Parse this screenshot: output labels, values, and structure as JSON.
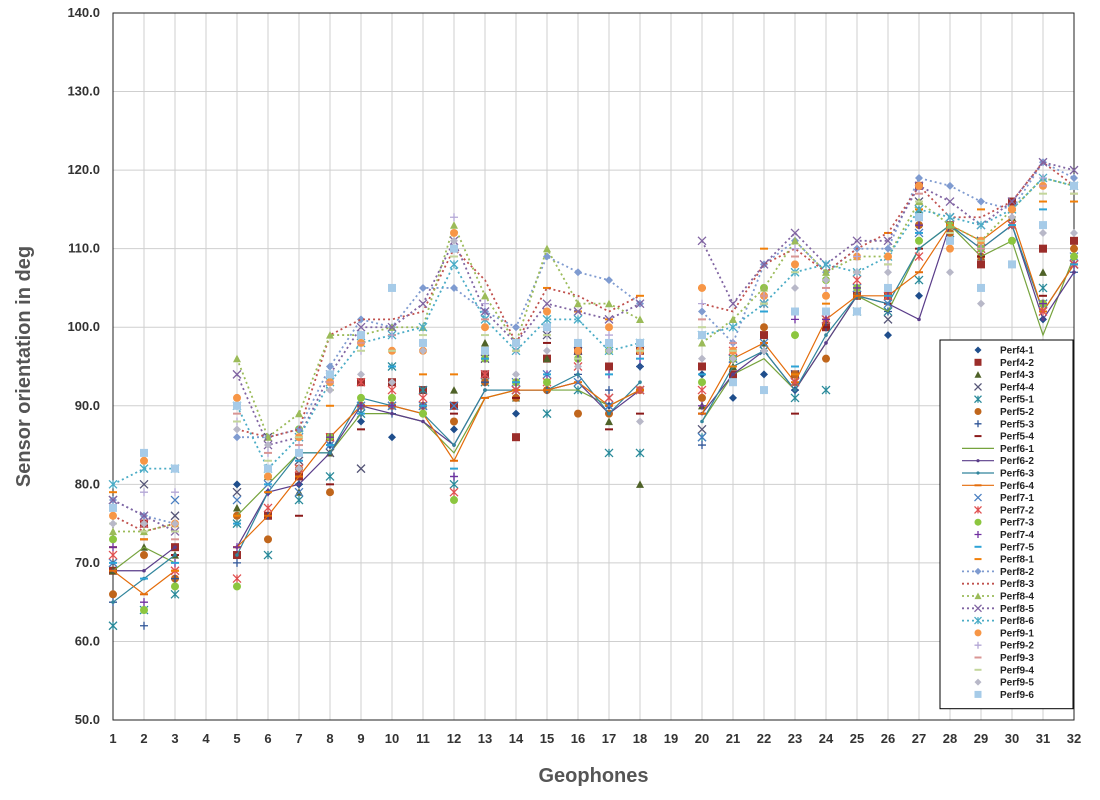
{
  "chart_data": {
    "type": "line",
    "title": "",
    "xlabel": "Geophones",
    "ylabel": "Sensor orientation in deg",
    "ylim": [
      50,
      140
    ],
    "yticks": [
      50,
      60,
      70,
      80,
      90,
      100,
      110,
      120,
      130,
      140
    ],
    "ytick_labels": [
      "50.0",
      "60.0",
      "70.0",
      "80.0",
      "90.0",
      "100.0",
      "110.0",
      "120.0",
      "130.0",
      "140.0"
    ],
    "x": [
      1,
      2,
      3,
      4,
      5,
      6,
      7,
      8,
      9,
      10,
      11,
      12,
      13,
      14,
      15,
      16,
      17,
      18,
      19,
      20,
      21,
      22,
      23,
      24,
      25,
      26,
      27,
      28,
      29,
      30,
      31,
      32
    ],
    "xtick_labels": [
      "1",
      "2",
      "3",
      "4",
      "5",
      "6",
      "7",
      "8",
      "9",
      "10",
      "11",
      "12",
      "13",
      "14",
      "15",
      "16",
      "17",
      "18",
      "19",
      "20",
      "21",
      "22",
      "23",
      "24",
      "25",
      "26",
      "27",
      "28",
      "29",
      "30",
      "31",
      "32"
    ],
    "grid": true,
    "legend_position": "bottom-right",
    "series": [
      {
        "name": "Perf4-1",
        "color": "#1f4e8c",
        "marker": "diamond",
        "line": "none",
        "values": [
          69,
          71,
          72,
          null,
          80,
          79,
          80,
          85,
          88,
          86,
          89,
          87,
          94,
          89,
          96,
          97,
          90,
          95,
          null,
          94,
          91,
          94,
          92,
          100,
          104,
          99,
          104,
          110,
          110,
          113,
          101,
          110
        ]
      },
      {
        "name": "Perf4-2",
        "color": "#9b2d2a",
        "marker": "square",
        "line": "none",
        "values": [
          69,
          75,
          72,
          null,
          71,
          76,
          81,
          86,
          93,
          93,
          92,
          90,
          94,
          86,
          96,
          97,
          95,
          97,
          null,
          95,
          94,
          99,
          94,
          100,
          104,
          104,
          118,
          113,
          108,
          116,
          110,
          111
        ]
      },
      {
        "name": "Perf4-3",
        "color": "#4f6228",
        "marker": "triangle",
        "line": "none",
        "values": [
          69,
          72,
          71,
          null,
          77,
          81,
          79,
          84,
          90,
          90,
          90,
          92,
          98,
          91,
          96,
          97,
          88,
          80,
          null,
          90,
          95,
          98,
          93,
          101,
          104,
          104,
          115,
          113,
          109,
          114,
          107,
          109
        ]
      },
      {
        "name": "Perf4-4",
        "color": "#555577",
        "marker": "x",
        "line": "none",
        "values": [
          78,
          80,
          76,
          null,
          79,
          86,
          83,
          84,
          82,
          90,
          90,
          90,
          96,
          92,
          99,
          97,
          91,
          92,
          null,
          87,
          96,
          97,
          94,
          101,
          105,
          101,
          116,
          114,
          111,
          113,
          103,
          108
        ]
      },
      {
        "name": "Perf5-1",
        "color": "#2a8a9a",
        "marker": "asterisk",
        "line": "none",
        "values": [
          62,
          64,
          66,
          null,
          75,
          71,
          78,
          81,
          89,
          95,
          92,
          80,
          93,
          92,
          89,
          92,
          84,
          84,
          null,
          86,
          96,
          97,
          91,
          92,
          102,
          102,
          106,
          112,
          110,
          113,
          105,
          108
        ]
      },
      {
        "name": "Perf5-2",
        "color": "#c0661c",
        "marker": "circle",
        "line": "none",
        "values": [
          66,
          71,
          68,
          null,
          76,
          73,
          82,
          79,
          90,
          90,
          90,
          88,
          93,
          91,
          92,
          89,
          89,
          92,
          null,
          91,
          96,
          100,
          94,
          96,
          104,
          104,
          113,
          112,
          109,
          115,
          103,
          110
        ]
      },
      {
        "name": "Perf5-3",
        "color": "#2f5597",
        "marker": "plus",
        "line": "none",
        "values": [
          65,
          62,
          68,
          null,
          70,
          76,
          80,
          85,
          89,
          89,
          89,
          81,
          93,
          92,
          92,
          94,
          92,
          95,
          null,
          85,
          98,
          97,
          92,
          100,
          104,
          102,
          113,
          113,
          109,
          114,
          103,
          107
        ]
      },
      {
        "name": "Perf5-4",
        "color": "#8b1a1a",
        "marker": "dash",
        "line": "none",
        "values": [
          72,
          73,
          71,
          null,
          72,
          76,
          76,
          80,
          87,
          90,
          90,
          89,
          96,
          91,
          98,
          96,
          87,
          89,
          null,
          89,
          95,
          103,
          89,
          100,
          104,
          103,
          110,
          113,
          109,
          114,
          104,
          108
        ]
      },
      {
        "name": "Perf6-1",
        "color": "#76a33d",
        "marker": "none",
        "line": "solid",
        "values": [
          69,
          72,
          70,
          null,
          76,
          80,
          84,
          84,
          89,
          89,
          88,
          84,
          91,
          92,
          92,
          92,
          90,
          92,
          null,
          88,
          94,
          96,
          92,
          98,
          104,
          102,
          110,
          113,
          109,
          111,
          99,
          109
        ]
      },
      {
        "name": "Perf6-2",
        "color": "#5a3d8a",
        "marker": "dot",
        "line": "solid",
        "values": [
          69,
          69,
          72,
          null,
          72,
          79,
          80,
          84,
          90,
          89,
          88,
          85,
          92,
          92,
          92,
          93,
          89,
          92,
          null,
          89,
          94,
          97,
          92,
          98,
          104,
          103,
          101,
          113,
          110,
          113,
          101,
          107
        ]
      },
      {
        "name": "Perf6-3",
        "color": "#31859c",
        "marker": "dot",
        "line": "solid",
        "values": [
          65,
          68,
          71,
          null,
          71,
          79,
          84,
          84,
          91,
          90,
          89,
          85,
          92,
          92,
          92,
          94,
          89,
          93,
          null,
          88,
          95,
          97,
          92,
          99,
          104,
          103,
          110,
          113,
          110,
          113,
          102,
          108
        ]
      },
      {
        "name": "Perf6-4",
        "color": "#e46c0a",
        "marker": "dash",
        "line": "solid",
        "values": [
          69,
          66,
          69,
          null,
          72,
          76,
          81,
          86,
          90,
          90,
          89,
          83,
          91,
          92,
          92,
          93,
          90,
          92,
          null,
          89,
          96,
          98,
          93,
          101,
          104,
          104,
          107,
          113,
          111,
          114,
          102,
          108
        ]
      },
      {
        "name": "Perf7-1",
        "color": "#4a7fc1",
        "marker": "x",
        "line": "none",
        "values": [
          70,
          75,
          78,
          null,
          78,
          80,
          79,
          85,
          90,
          90,
          90,
          90,
          94,
          93,
          94,
          93,
          90,
          92,
          null,
          86,
          96,
          98,
          93,
          101,
          105,
          103,
          112,
          113,
          110,
          113,
          103,
          109
        ]
      },
      {
        "name": "Perf7-2",
        "color": "#e05050",
        "marker": "asterisk",
        "line": "none",
        "values": [
          71,
          75,
          69,
          null,
          68,
          77,
          82,
          86,
          93,
          92,
          91,
          79,
          94,
          92,
          93,
          95,
          91,
          92,
          null,
          92,
          97,
          103,
          93,
          101,
          106,
          104,
          109,
          113,
          110,
          113,
          102,
          108
        ]
      },
      {
        "name": "Perf7-3",
        "color": "#8cc63f",
        "marker": "circle",
        "line": "none",
        "values": [
          73,
          64,
          67,
          null,
          67,
          81,
          87,
          86,
          91,
          91,
          89,
          78,
          96,
          93,
          93,
          96,
          97,
          97,
          null,
          93,
          96,
          105,
          99,
          106,
          105,
          105,
          111,
          113,
          110,
          111,
          103,
          109
        ]
      },
      {
        "name": "Perf7-4",
        "color": "#7030a0",
        "marker": "plus",
        "line": "none",
        "values": [
          72,
          65,
          70,
          null,
          72,
          79,
          82,
          86,
          90,
          90,
          90,
          81,
          96,
          93,
          94,
          96,
          94,
          96,
          null,
          90,
          96,
          103,
          101,
          101,
          105,
          104,
          113,
          113,
          110,
          114,
          103,
          108
        ]
      },
      {
        "name": "Perf7-5",
        "color": "#2ea3d6",
        "marker": "dash",
        "line": "none",
        "values": [
          70,
          68,
          70,
          null,
          75,
          80,
          83,
          85,
          89,
          95,
          90,
          82,
          96,
          93,
          94,
          96,
          94,
          96,
          null,
          94,
          96,
          102,
          95,
          102,
          107,
          104,
          112,
          113,
          110,
          113,
          115,
          108
        ]
      },
      {
        "name": "Perf8-1",
        "color": "#f07f09",
        "marker": "dash",
        "line": "none",
        "values": [
          79,
          73,
          69,
          null,
          76,
          79,
          84,
          90,
          99,
          99,
          94,
          94,
          97,
          97,
          105,
          102,
          101,
          104,
          null,
          105,
          95,
          110,
          94,
          103,
          107,
          112,
          115,
          113,
          115,
          115,
          116,
          116
        ]
      },
      {
        "name": "Perf8-2",
        "color": "#7f9bd0",
        "marker": "diamond",
        "line": "dotted",
        "values": [
          78,
          76,
          75,
          null,
          86,
          86,
          87,
          95,
          101,
          100,
          105,
          105,
          102,
          100,
          109,
          107,
          106,
          103,
          null,
          102,
          98,
          108,
          111,
          107,
          110,
          110,
          119,
          118,
          116,
          115,
          121,
          119
        ]
      },
      {
        "name": "Perf8-3",
        "color": "#c0504d",
        "marker": "none",
        "line": "dotted",
        "values": [
          76,
          74,
          75,
          null,
          87,
          86,
          87,
          99,
          101,
          101,
          102,
          110,
          106,
          98,
          105,
          104,
          102,
          104,
          null,
          103,
          102,
          108,
          110,
          107,
          110,
          112,
          118,
          114,
          114,
          116,
          121,
          118
        ]
      },
      {
        "name": "Perf8-4",
        "color": "#9bbb59",
        "marker": "triangle",
        "line": "dotted",
        "values": [
          74,
          74,
          75,
          null,
          96,
          86,
          89,
          99,
          99,
          100,
          100,
          113,
          104,
          98,
          110,
          103,
          103,
          101,
          null,
          98,
          101,
          105,
          111,
          107,
          109,
          109,
          116,
          113,
          111,
          115,
          119,
          118
        ]
      },
      {
        "name": "Perf8-5",
        "color": "#8064a2",
        "marker": "x",
        "line": "dotted",
        "values": [
          78,
          76,
          74,
          null,
          94,
          85,
          86,
          94,
          100,
          100,
          103,
          111,
          102,
          98,
          103,
          102,
          101,
          103,
          null,
          111,
          103,
          108,
          112,
          108,
          111,
          111,
          118,
          116,
          113,
          116,
          121,
          120
        ]
      },
      {
        "name": "Perf8-6",
        "color": "#4bacc6",
        "marker": "asterisk",
        "line": "dotted",
        "values": [
          80,
          82,
          82,
          null,
          90,
          82,
          86,
          93,
          98,
          99,
          100,
          108,
          101,
          97,
          101,
          101,
          97,
          98,
          null,
          99,
          100,
          103,
          107,
          108,
          107,
          109,
          115,
          114,
          113,
          115,
          119,
          118
        ]
      },
      {
        "name": "Perf9-1",
        "color": "#f79646",
        "marker": "circle",
        "line": "none",
        "values": [
          76,
          83,
          75,
          null,
          91,
          81,
          86,
          93,
          98,
          97,
          97,
          112,
          100,
          98,
          102,
          97,
          100,
          97,
          null,
          105,
          97,
          104,
          108,
          104,
          109,
          109,
          118,
          110,
          111,
          115,
          118,
          118
        ]
      },
      {
        "name": "Perf9-2",
        "color": "#b4a7d6",
        "marker": "plus",
        "line": "none",
        "values": [
          77,
          79,
          79,
          null,
          88,
          84,
          85,
          94,
          97,
          99,
          98,
          114,
          103,
          97,
          99,
          98,
          99,
          97,
          null,
          103,
          98,
          104,
          110,
          105,
          109,
          108,
          117,
          111,
          110,
          114,
          119,
          118
        ]
      },
      {
        "name": "Perf9-3",
        "color": "#d99694",
        "marker": "dash",
        "line": "none",
        "values": [
          77,
          75,
          73,
          null,
          89,
          84,
          85,
          93,
          98,
          97,
          98,
          110,
          101,
          97,
          99,
          98,
          98,
          98,
          null,
          101,
          98,
          104,
          109,
          105,
          107,
          108,
          117,
          112,
          110,
          114,
          118,
          117
        ]
      },
      {
        "name": "Perf9-4",
        "color": "#c3d69b",
        "marker": "dash",
        "line": "none",
        "values": [
          75,
          74,
          74,
          null,
          88,
          83,
          86,
          92,
          97,
          97,
          99,
          109,
          99,
          97,
          99,
          96,
          98,
          97,
          null,
          100,
          97,
          103,
          107,
          106,
          107,
          108,
          116,
          112,
          111,
          114,
          117,
          117
        ]
      },
      {
        "name": "Perf9-5",
        "color": "#b8b8c8",
        "marker": "diamond",
        "line": "none",
        "values": [
          75,
          75,
          75,
          null,
          87,
          85,
          82,
          92,
          94,
          93,
          97,
          111,
          97,
          94,
          97,
          95,
          97,
          88,
          null,
          96,
          96,
          97,
          105,
          106,
          107,
          107,
          114,
          107,
          103,
          114,
          112,
          112
        ]
      },
      {
        "name": "Perf9-6",
        "color": "#a6cbe8",
        "marker": "square",
        "line": "none",
        "values": [
          77,
          84,
          82,
          null,
          90,
          82,
          84,
          94,
          99,
          105,
          98,
          110,
          97,
          98,
          100,
          98,
          98,
          98,
          null,
          99,
          93,
          92,
          102,
          102,
          102,
          105,
          114,
          111,
          105,
          108,
          113,
          118
        ]
      }
    ]
  }
}
